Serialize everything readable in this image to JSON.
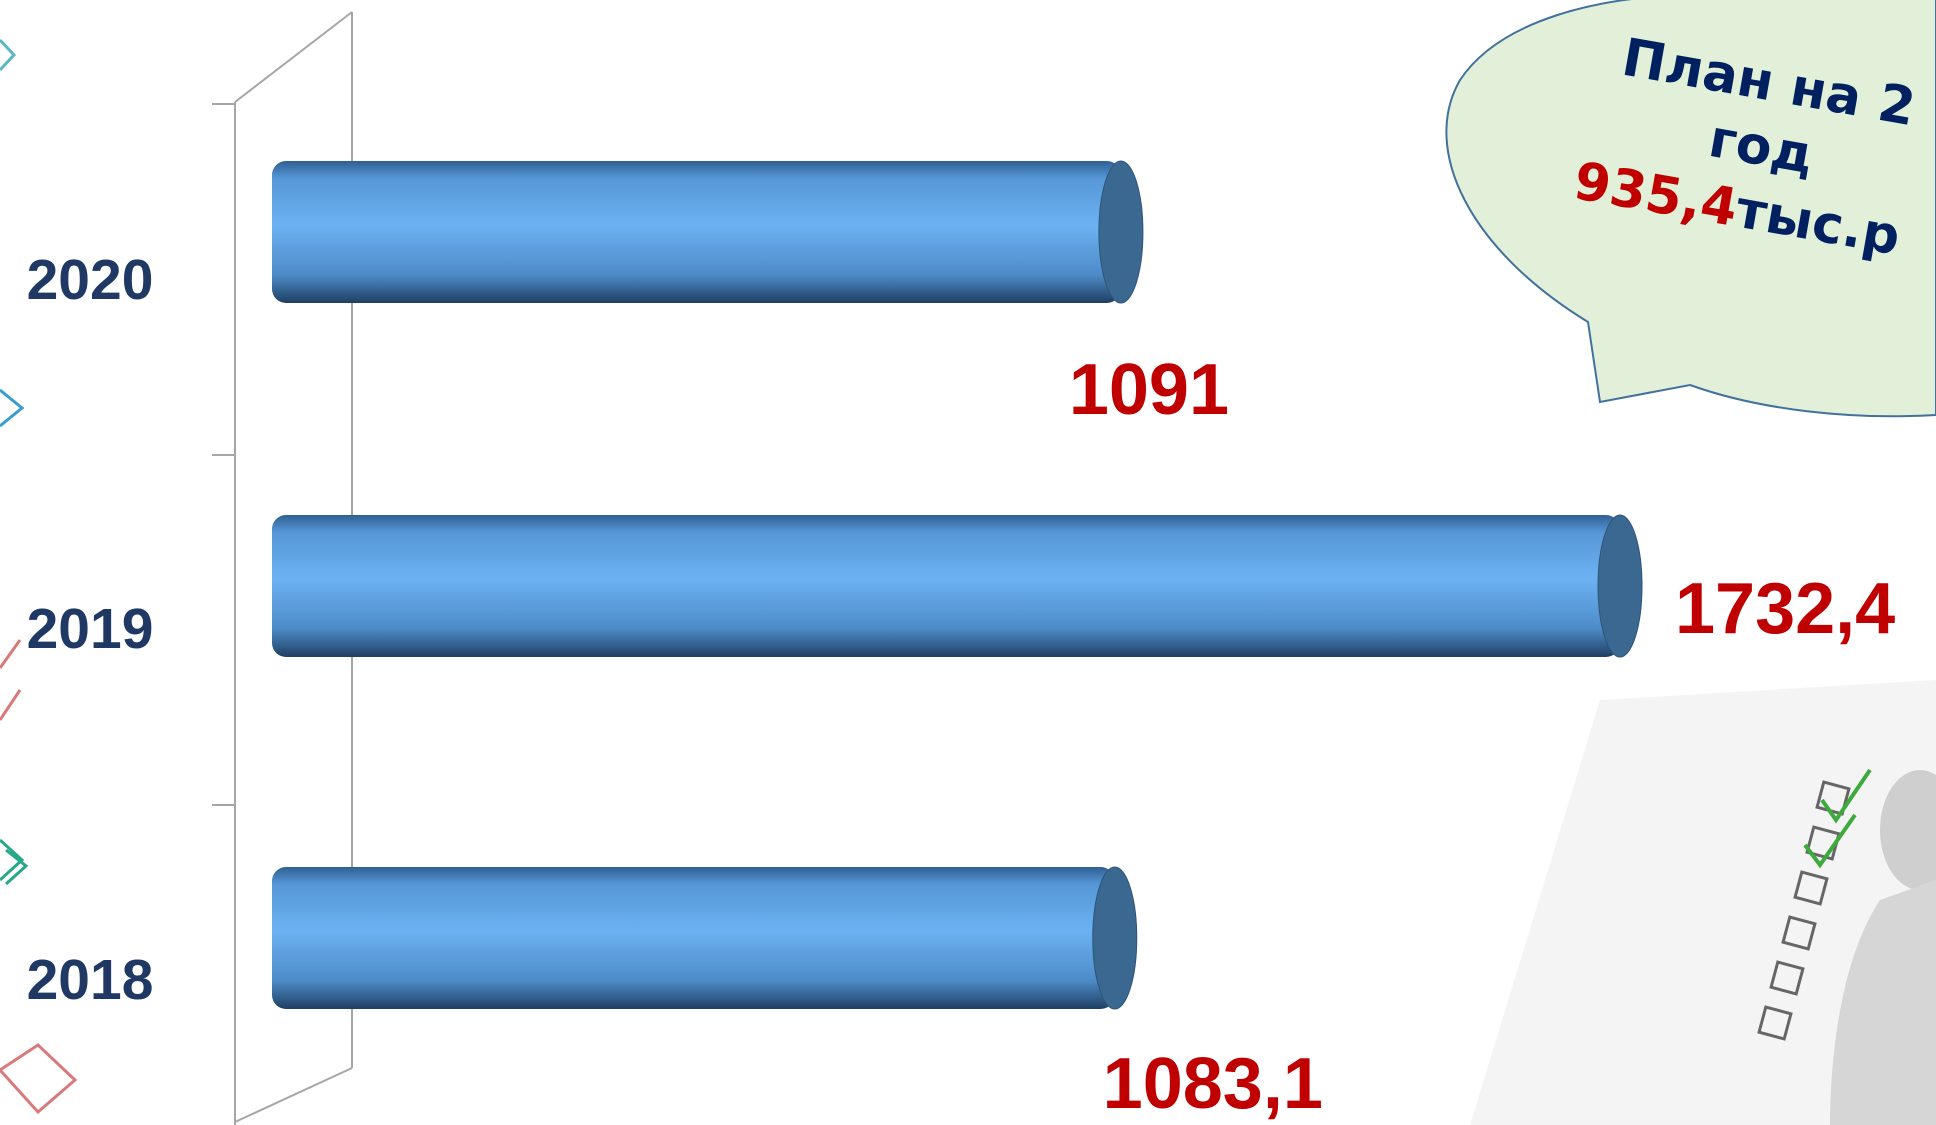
{
  "chart_data": {
    "type": "bar",
    "orientation": "horizontal",
    "categories": [
      "2020",
      "2019",
      "2018"
    ],
    "values": [
      1091,
      1732.4,
      1083.1
    ],
    "value_labels": [
      "1091",
      "1732,4",
      "1083,1"
    ],
    "color": "#5b9bd5",
    "annotations": [
      "План на 2",
      "год",
      "935,4",
      "тыс.р"
    ]
  }
}
